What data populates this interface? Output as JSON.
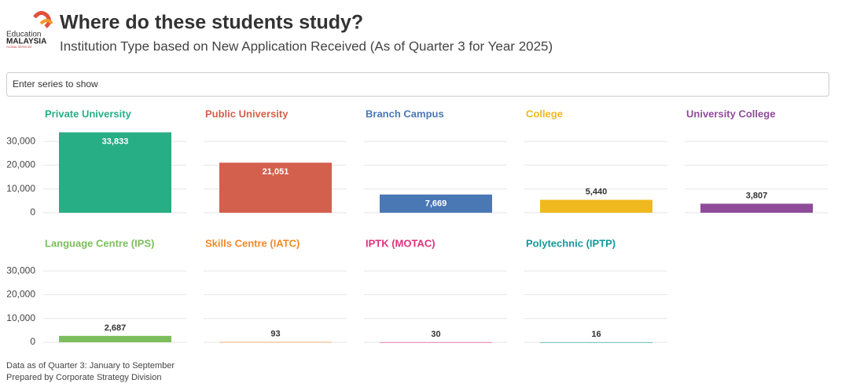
{
  "header": {
    "logo_line1": "Education",
    "logo_line2": "MALAYSIA",
    "logo_line3": "GLOBAL SERVICES"
  },
  "search_placeholder": "Enter series to show",
  "footer": [
    "Data as of Quarter 3: January to September",
    "Prepared by Corporate Strategy Division"
  ],
  "chart_data": {
    "type": "bar",
    "title": "Where do these students study?",
    "subtitle": "Institution Type based on New Application Received (As of Quarter 3 for Year 2025)",
    "ylim": [
      0,
      35000
    ],
    "yticks": [
      0,
      {
        "value": 10000,
        "label": "10,000"
      },
      {
        "value": 20000,
        "label": "20,000"
      },
      {
        "value": 30000,
        "label": "30,000"
      }
    ],
    "grid": true,
    "series": [
      {
        "name": "Private University",
        "color": "#27ae85",
        "values": [
          33833
        ],
        "value_labels": [
          "33,833"
        ]
      },
      {
        "name": "Public University",
        "color": "#d35f4d",
        "values": [
          21051
        ],
        "value_labels": [
          "21,051"
        ]
      },
      {
        "name": "Branch Campus",
        "color": "#4a78b5",
        "values": [
          7669
        ],
        "value_labels": [
          "7,669"
        ]
      },
      {
        "name": "College",
        "color": "#f0b91f",
        "values": [
          5440
        ],
        "value_labels": [
          "5,440"
        ]
      },
      {
        "name": "University College",
        "color": "#8e4b9a",
        "values": [
          3807
        ],
        "value_labels": [
          "3,807"
        ]
      },
      {
        "name": "Language Centre (IPS)",
        "color": "#7dbe5c",
        "values": [
          2687
        ],
        "value_labels": [
          "2,687"
        ]
      },
      {
        "name": "Skills Centre (IATC)",
        "color": "#f08a2c",
        "values": [
          93
        ]
      },
      {
        "name": "IPTK (MOTAC)",
        "color": "#e0327e",
        "values": [
          30
        ]
      },
      {
        "name": "Polytechnic (IPTP)",
        "color": "#14999a",
        "values": [
          16
        ]
      }
    ]
  }
}
